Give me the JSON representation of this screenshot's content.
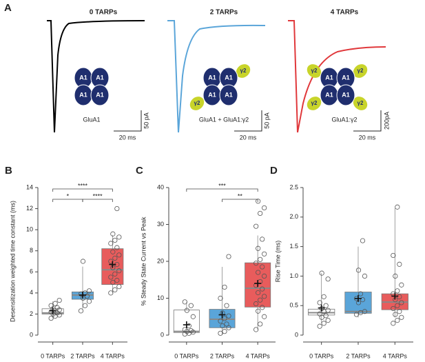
{
  "panel_a": {
    "label": "A",
    "subunit": "A1",
    "auxiliary": "γ2",
    "traces": [
      {
        "title": "0 TARPs",
        "color": "#000000",
        "caption": "GluA1",
        "scale_y": "50 pA",
        "scale_x": "20 ms"
      },
      {
        "title": "2 TARPs",
        "color": "#5aa5d9",
        "caption": "GluA1 + GluA1:γ2",
        "scale_y": "50 pA",
        "scale_x": "20 ms"
      },
      {
        "title": "4 TARPs",
        "color": "#e0373a",
        "caption": "GluA1:γ2",
        "scale_y": "200pA",
        "scale_x": "20 ms"
      }
    ]
  },
  "chart_data": [
    {
      "type": "box",
      "label": "B",
      "ylabel": "Desensitization weighted time constant (ms)",
      "categories": [
        "0 TARPs",
        "2 TARPs",
        "4 TARPs"
      ],
      "colors": [
        "#ffffff",
        "#5aa5d9",
        "#e85c5c"
      ],
      "ylim": [
        0,
        14
      ],
      "yticks": [
        0,
        2,
        4,
        6,
        8,
        10,
        12,
        14
      ],
      "boxes": [
        {
          "whisker_low": 1.6,
          "q1": 2.0,
          "median": 2.1,
          "q3": 2.5,
          "whisker_high": 3.2,
          "mean": 2.3,
          "points": [
            1.6,
            1.8,
            1.9,
            2.0,
            2.1,
            2.2,
            2.3,
            2.4,
            2.5,
            2.6,
            2.8,
            3.0,
            3.3
          ]
        },
        {
          "whisker_low": 2.5,
          "q1": 3.4,
          "median": 3.8,
          "q3": 4.1,
          "whisker_high": 6.5,
          "mean": 3.8,
          "points": [
            2.3,
            2.8,
            3.2,
            3.5,
            3.7,
            3.9,
            4.0,
            4.2,
            7.0
          ]
        },
        {
          "whisker_low": 4.0,
          "q1": 4.8,
          "median": 6.2,
          "q3": 8.2,
          "whisker_high": 9.5,
          "mean": 6.7,
          "points": [
            4.0,
            4.3,
            4.6,
            5.0,
            5.2,
            5.5,
            5.8,
            6.1,
            6.4,
            6.7,
            7.0,
            7.3,
            7.6,
            7.9,
            8.3,
            8.7,
            9.0,
            9.3,
            9.6,
            12.0
          ]
        }
      ],
      "brackets": [
        {
          "from": 0,
          "to": 2,
          "label": "****"
        },
        {
          "from": 0,
          "to": 1,
          "label": "*"
        },
        {
          "from": 1,
          "to": 2,
          "label": "****"
        }
      ]
    },
    {
      "type": "box",
      "label": "C",
      "ylabel": "% Steady State Current vs Peak",
      "categories": [
        "0 TARPs",
        "2 TARPs",
        "4 TARPs"
      ],
      "colors": [
        "#ffffff",
        "#5aa5d9",
        "#e85c5c"
      ],
      "ylim": [
        0,
        40
      ],
      "yticks": [
        0,
        10,
        20,
        30,
        40
      ],
      "boxes": [
        {
          "whisker_low": 0.3,
          "q1": 0.7,
          "median": 1.0,
          "q3": 6.8,
          "whisker_high": 9.0,
          "mean": 2.8,
          "points": [
            0.3,
            0.5,
            0.8,
            1.0,
            1.2,
            1.5,
            2.5,
            5.0,
            6.7,
            8.0,
            9.0
          ]
        },
        {
          "whisker_low": 0.2,
          "q1": 2.0,
          "median": 4.3,
          "q3": 7.0,
          "whisker_high": 18.5,
          "mean": 5.5,
          "points": [
            0.5,
            1.0,
            2.0,
            2.5,
            3.0,
            3.8,
            4.5,
            5.2,
            6.0,
            8.0,
            10.0,
            13.0,
            21.3
          ]
        },
        {
          "whisker_low": 1.5,
          "q1": 7.6,
          "median": 12.7,
          "q3": 19.6,
          "whisker_high": 27.0,
          "mean": 14.0,
          "points": [
            1.5,
            3.0,
            5.0,
            6.5,
            7.5,
            8.5,
            9.5,
            10.5,
            11.5,
            12.5,
            13.5,
            14.5,
            16.0,
            17.0,
            18.5,
            19.5,
            20.5,
            22.0,
            23.5,
            26.0,
            29.5,
            33.0,
            34.5,
            36.3
          ]
        }
      ],
      "brackets": [
        {
          "from": 0,
          "to": 2,
          "label": "***"
        },
        {
          "from": 1,
          "to": 2,
          "label": "**"
        }
      ]
    },
    {
      "type": "box",
      "label": "D",
      "ylabel": "Rise Time (ms)",
      "categories": [
        "0 TARPs",
        "2 TARPs",
        "4 TARPs"
      ],
      "colors": [
        "#ffffff",
        "#5aa5d9",
        "#e85c5c"
      ],
      "ylim": [
        0,
        2.5
      ],
      "yticks": [
        0,
        0.5,
        {
          "value": 1,
          "label": "1.0"
        },
        1.5,
        {
          "value": 2,
          "label": "2.0"
        },
        2.5
      ],
      "boxes": [
        {
          "whisker_low": 0.2,
          "q1": 0.34,
          "median": 0.38,
          "q3": 0.44,
          "whisker_high": 1.05,
          "mean": 0.46,
          "points": [
            0.15,
            0.2,
            0.25,
            0.3,
            0.33,
            0.36,
            0.4,
            0.42,
            0.45,
            0.5,
            0.55,
            0.65,
            0.95,
            1.05
          ]
        },
        {
          "whisker_low": 0.3,
          "q1": 0.37,
          "median": 0.4,
          "q3": 0.73,
          "whisker_high": 1.5,
          "mean": 0.62,
          "points": [
            0.35,
            0.38,
            0.4,
            0.55,
            0.6,
            0.62,
            0.7,
            1.0,
            1.1,
            1.6
          ]
        },
        {
          "whisker_low": 0.3,
          "q1": 0.43,
          "median": 0.56,
          "q3": 0.7,
          "whisker_high": 2.15,
          "mean": 0.66,
          "points": [
            0.2,
            0.25,
            0.3,
            0.35,
            0.4,
            0.45,
            0.5,
            0.55,
            0.6,
            0.65,
            0.7,
            0.75,
            0.85,
            1.0,
            1.2,
            1.35,
            2.17
          ]
        }
      ],
      "brackets": []
    }
  ]
}
